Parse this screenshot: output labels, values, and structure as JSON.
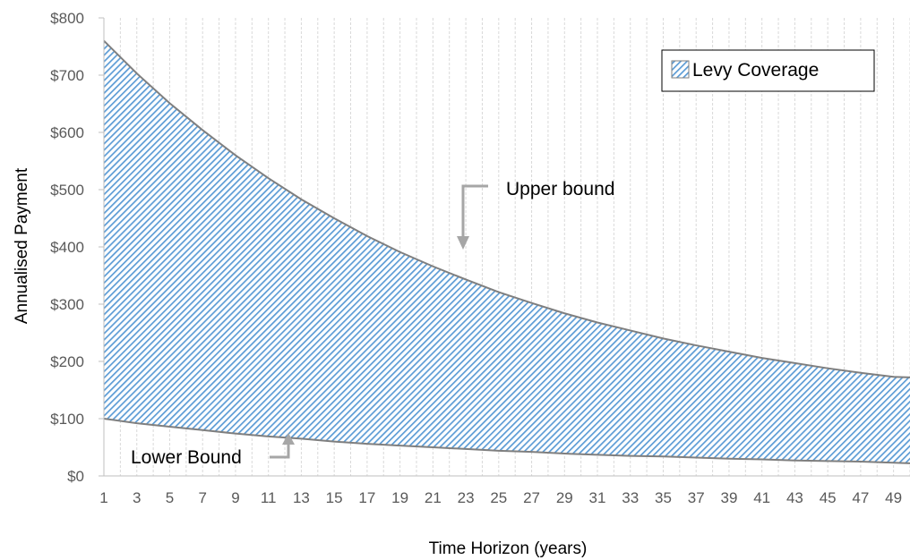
{
  "chart_data": {
    "type": "area",
    "title": "",
    "xlabel": "Time Horizon (years)",
    "ylabel": "Annualised Payment",
    "xlim": [
      1,
      50
    ],
    "ylim": [
      0,
      800
    ],
    "x_ticks": [
      "1",
      "3",
      "5",
      "7",
      "9",
      "11",
      "13",
      "15",
      "17",
      "19",
      "21",
      "23",
      "25",
      "27",
      "29",
      "31",
      "33",
      "35",
      "37",
      "39",
      "41",
      "43",
      "45",
      "47",
      "49"
    ],
    "y_ticks": [
      "$0",
      "$100",
      "$200",
      "$300",
      "$400",
      "$500",
      "$600",
      "$700",
      "$800"
    ],
    "grid": "vertical",
    "legend_position": "top-right",
    "colors": {
      "fill": "#5b9bd5",
      "line": "#7f7f7f",
      "grid": "#d9d9d9",
      "arrow": "#a6a6a6"
    },
    "series": [
      {
        "name": "Levy Coverage",
        "kind": "band",
        "upper": {
          "start": 760,
          "end": 172
        },
        "lower": {
          "start": 100,
          "end": 22
        }
      }
    ],
    "x": [
      1,
      3,
      5,
      7,
      9,
      11,
      13,
      15,
      17,
      19,
      21,
      23,
      25,
      27,
      29,
      31,
      33,
      35,
      37,
      39,
      41,
      43,
      45,
      47,
      49,
      50
    ],
    "upper": [
      760,
      703,
      651,
      604,
      560,
      520,
      483,
      450,
      419,
      391,
      366,
      343,
      321,
      302,
      284,
      268,
      254,
      240,
      228,
      217,
      206,
      197,
      188,
      180,
      173,
      172
    ],
    "lower": [
      100,
      92,
      86,
      80,
      74,
      69,
      65,
      60,
      56,
      53,
      50,
      47,
      44,
      42,
      39,
      37,
      35,
      34,
      32,
      30,
      29,
      27,
      26,
      25,
      23,
      22
    ],
    "annotations": [
      {
        "text": "Upper bound",
        "x": 23,
        "y": 390
      },
      {
        "text": "Lower Bound",
        "x": 12,
        "y": 70
      }
    ]
  }
}
